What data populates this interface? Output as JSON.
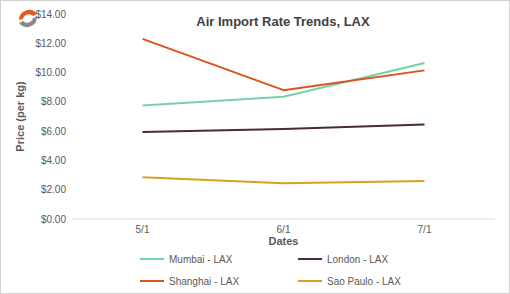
{
  "chart_data": {
    "type": "line",
    "title": "Air Import Rate Trends, LAX",
    "x_label": "Dates",
    "y_label": "Price (per kg)",
    "categories": [
      "5/1",
      "6/1",
      "7/1"
    ],
    "series": [
      {
        "name": "Mumbai - LAX",
        "color": "#74d3a4",
        "values": [
          7.75,
          8.35,
          10.65
        ]
      },
      {
        "name": "London - LAX",
        "color": "#4b2b35",
        "values": [
          5.95,
          6.15,
          6.45
        ]
      },
      {
        "name": "Shanghai - LAX",
        "color": "#d9531e",
        "values": [
          12.3,
          8.8,
          10.15
        ]
      },
      {
        "name": "Sao Paulo - LAX",
        "color": "#d6a11c",
        "values": [
          2.85,
          2.45,
          2.6
        ]
      }
    ],
    "ylim": [
      0,
      14
    ],
    "yticks": [
      {
        "value": 0,
        "label": "$0.00"
      },
      {
        "value": 2,
        "label": "$2.00"
      },
      {
        "value": 4,
        "label": "$4.00"
      },
      {
        "value": 6,
        "label": "$6.00"
      },
      {
        "value": 8,
        "label": "$8.00"
      },
      {
        "value": 10,
        "label": "$10.00"
      },
      {
        "value": 12,
        "label": "$12.00"
      },
      {
        "value": 14,
        "label": "$14.00"
      }
    ],
    "grid": false,
    "legend": "bottom"
  }
}
